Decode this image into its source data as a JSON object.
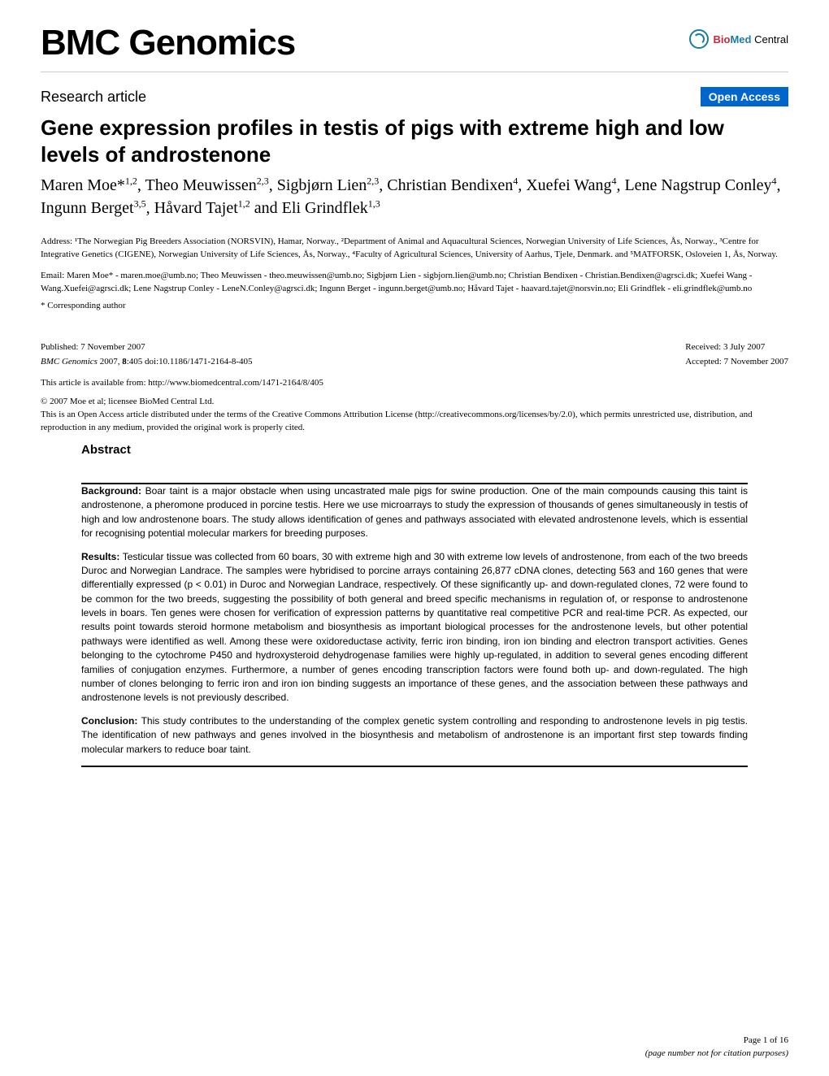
{
  "journal": {
    "name": "BMC Genomics",
    "publisher_bio": "Bio",
    "publisher_med": "Med",
    "publisher_central": " Central"
  },
  "header": {
    "article_type": "Research article",
    "open_access": "Open Access"
  },
  "title": "Gene expression profiles in testis of pigs with extreme high and low levels of androstenone",
  "authors_html": "Maren Moe*<sup>1,2</sup>, Theo Meuwissen<sup>2,3</sup>, Sigbjørn Lien<sup>2,3</sup>, Christian Bendixen<sup>4</sup>, Xuefei Wang<sup>4</sup>, Lene Nagstrup Conley<sup>4</sup>, Ingunn Berget<sup>3,5</sup>, Håvard Tajet<sup>1,2</sup> and Eli Grindflek<sup>1,3</sup>",
  "affiliations": "Address: ¹The Norwegian Pig Breeders Association (NORSVIN), Hamar, Norway., ²Department of Animal and Aquacultural Sciences, Norwegian University of Life Sciences, Ås, Norway., ³Centre for Integrative Genetics (CIGENE), Norwegian University of Life Sciences, Ås, Norway., ⁴Faculty of Agricultural Sciences, University of Aarhus, Tjele, Denmark. and ⁵MATFORSK, Osloveien 1, Ås, Norway.",
  "emails": "Email: Maren Moe* - maren.moe@umb.no; Theo Meuwissen - theo.meuwissen@umb.no; Sigbjørn Lien - sigbjorn.lien@umb.no; Christian Bendixen - Christian.Bendixen@agrsci.dk; Xuefei Wang - Wang.Xuefei@agrsci.dk; Lene Nagstrup Conley - LeneN.Conley@agrsci.dk; Ingunn Berget - ingunn.berget@umb.no; Håvard Tajet - haavard.tajet@norsvin.no; Eli Grindflek - eli.grindflek@umb.no",
  "corresponding": "* Corresponding author",
  "publication": {
    "published": "Published: 7 November 2007",
    "citation_journal": "BMC Genomics",
    "citation_year_vol": " 2007, ",
    "citation_vol": "8",
    "citation_rest": ":405    doi:10.1186/1471-2164-8-405",
    "received": "Received: 3 July 2007",
    "accepted": "Accepted: 7 November 2007",
    "url_label": "This article is available from: ",
    "url": "http://www.biomedcentral.com/1471-2164/8/405"
  },
  "copyright": {
    "line1": "© 2007 Moe et al; licensee BioMed Central Ltd.",
    "line2_pre": "This is an Open Access article distributed under the terms of the Creative Commons Attribution License (",
    "line2_url": "http://creativecommons.org/licenses/by/2.0",
    "line2_post": "), which permits unrestricted use, distribution, and reproduction in any medium, provided the original work is properly cited."
  },
  "abstract": {
    "heading": "Abstract",
    "background_label": "Background: ",
    "background": "Boar taint is a major obstacle when using uncastrated male pigs for swine production. One of the main compounds causing this taint is androstenone, a pheromone produced in porcine testis. Here we use microarrays to study the expression of thousands of genes simultaneously in testis of high and low androstenone boars. The study allows identification of genes and pathways associated with elevated androstenone levels, which is essential for recognising potential molecular markers for breeding purposes.",
    "results_label": "Results: ",
    "results": "Testicular tissue was collected from 60 boars, 30 with extreme high and 30 with extreme low levels of androstenone, from each of the two breeds Duroc and Norwegian Landrace. The samples were hybridised to porcine arrays containing 26,877 cDNA clones, detecting 563 and 160 genes that were differentially expressed (p < 0.01) in Duroc and Norwegian Landrace, respectively. Of these significantly up- and down-regulated clones, 72 were found to be common for the two breeds, suggesting the possibility of both general and breed specific mechanisms in regulation of, or response to androstenone levels in boars. Ten genes were chosen for verification of expression patterns by quantitative real competitive PCR and real-time PCR. As expected, our results point towards steroid hormone metabolism and biosynthesis as important biological processes for the androstenone levels, but other potential pathways were identified as well. Among these were oxidoreductase activity, ferric iron binding, iron ion binding and electron transport activities. Genes belonging to the cytochrome P450 and hydroxysteroid dehydrogenase families were highly up-regulated, in addition to several genes encoding different families of conjugation enzymes. Furthermore, a number of genes encoding transcription factors were found both up- and down-regulated. The high number of clones belonging to ferric iron and iron ion binding suggests an importance of these genes, and the association between these pathways and androstenone levels is not previously described.",
    "conclusion_label": "Conclusion: ",
    "conclusion": "This study contributes to the understanding of the complex genetic system controlling and responding to androstenone levels in pig testis. The identification of new pathways and genes involved in the biosynthesis and metabolism of androstenone is an important first step towards finding molecular markers to reduce boar taint."
  },
  "footer": {
    "page": "Page 1 of 16",
    "note": "(page number not for citation purposes)"
  },
  "colors": {
    "open_access_bg": "#0066cc",
    "biomed_blue": "#1a7ba8",
    "biomed_red": "#c8293c"
  }
}
